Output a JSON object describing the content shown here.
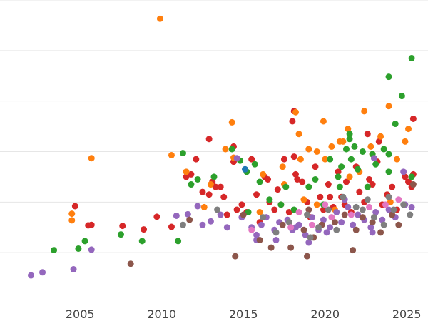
{
  "chart_data": {
    "type": "scatter",
    "title": "",
    "xlabel": "",
    "ylabel": "",
    "xlim": [
      2000.1,
      2026.3
    ],
    "ylim": [
      0,
      6
    ],
    "grid": "horizontal",
    "legend": "none",
    "x_ticks": [
      {
        "value": 2005,
        "label": "2005"
      },
      {
        "value": 2010,
        "label": "2010"
      },
      {
        "value": 2015,
        "label": "2015"
      },
      {
        "value": 2020,
        "label": "2020"
      },
      {
        "value": 2025,
        "label": "2025"
      }
    ],
    "y_gridlines": [
      1,
      2,
      3,
      4,
      5,
      6
    ],
    "series": [
      {
        "color": "#d62728",
        "points": [
          [
            2004.7,
            1.92
          ],
          [
            2005.5,
            1.54
          ],
          [
            2005.7,
            1.55
          ],
          [
            2007.6,
            1.53
          ],
          [
            2008.9,
            1.46
          ],
          [
            2009.7,
            1.71
          ],
          [
            2010.6,
            1.51
          ],
          [
            2011.5,
            2.5
          ],
          [
            2011.8,
            2.55
          ],
          [
            2012.1,
            2.85
          ],
          [
            2012.5,
            2.2
          ],
          [
            2012.9,
            2.15
          ],
          [
            2013.1,
            2.4
          ],
          [
            2013.3,
            2.3
          ],
          [
            2013.6,
            2.3
          ],
          [
            2013.8,
            2.1
          ],
          [
            2014.0,
            1.75
          ],
          [
            2014.4,
            2.8
          ],
          [
            2014.6,
            1.85
          ],
          [
            2014.9,
            1.95
          ],
          [
            2015.2,
            1.8
          ],
          [
            2015.5,
            2.85
          ],
          [
            2015.8,
            2.15
          ],
          [
            2016.0,
            1.6
          ],
          [
            2016.3,
            2.5
          ],
          [
            2016.6,
            2.0
          ],
          [
            2016.9,
            1.85
          ],
          [
            2017.1,
            2.25
          ],
          [
            2017.3,
            1.95
          ],
          [
            2017.5,
            2.85
          ],
          [
            2017.8,
            1.8
          ],
          [
            2018.1,
            2.9
          ],
          [
            2018.3,
            2.45
          ],
          [
            2018.6,
            2.4
          ],
          [
            2018.9,
            2.0
          ],
          [
            2019.1,
            1.7
          ],
          [
            2019.4,
            2.7
          ],
          [
            2019.7,
            2.1
          ],
          [
            2019.9,
            1.85
          ],
          [
            2020.2,
            2.35
          ],
          [
            2020.5,
            1.9
          ],
          [
            2020.8,
            2.6
          ],
          [
            2021.0,
            2.1
          ],
          [
            2021.3,
            2.4
          ],
          [
            2021.6,
            1.8
          ],
          [
            2021.9,
            2.7
          ],
          [
            2022.1,
            2.2
          ],
          [
            2022.4,
            2.0
          ],
          [
            2022.7,
            2.45
          ],
          [
            2022.9,
            2.35
          ],
          [
            2023.2,
            2.8
          ],
          [
            2023.5,
            1.95
          ],
          [
            2023.8,
            2.15
          ],
          [
            2024.1,
            2.3
          ],
          [
            2024.4,
            1.85
          ],
          [
            2024.9,
            2.5
          ],
          [
            2025.1,
            2.4
          ],
          [
            2025.3,
            2.3
          ],
          [
            2025.4,
            2.55
          ],
          [
            2012.9,
            3.25
          ],
          [
            2014.4,
            3.1
          ],
          [
            2018.0,
            3.6
          ],
          [
            2018.1,
            3.8
          ],
          [
            2022.6,
            3.35
          ],
          [
            2023.3,
            3.2
          ],
          [
            2025.4,
            3.65
          ],
          [
            2018.2,
            2.55
          ],
          [
            2020.3,
            2.1
          ],
          [
            2021.2,
            1.95
          ],
          [
            2016.5,
            2.45
          ]
        ]
      },
      {
        "color": "#ff7f0e",
        "points": [
          [
            2004.5,
            1.77
          ],
          [
            2004.5,
            1.64
          ],
          [
            2005.7,
            2.87
          ],
          [
            2009.9,
            5.63
          ],
          [
            2010.6,
            2.93
          ],
          [
            2011.5,
            2.6
          ],
          [
            2013.0,
            2.35
          ],
          [
            2013.9,
            3.05
          ],
          [
            2014.3,
            3.58
          ],
          [
            2014.4,
            2.88
          ],
          [
            2016.2,
            2.55
          ],
          [
            2017.4,
            2.7
          ],
          [
            2017.5,
            2.35
          ],
          [
            2018.2,
            3.78
          ],
          [
            2018.4,
            3.35
          ],
          [
            2018.7,
            2.05
          ],
          [
            2019.0,
            3.05
          ],
          [
            2019.5,
            3.0
          ],
          [
            2019.9,
            3.6
          ],
          [
            2020.0,
            2.85
          ],
          [
            2020.4,
            3.1
          ],
          [
            2020.9,
            3.2
          ],
          [
            2021.1,
            3.2
          ],
          [
            2021.4,
            3.45
          ],
          [
            2022.1,
            2.6
          ],
          [
            2022.4,
            3.8
          ],
          [
            2022.9,
            2.95
          ],
          [
            2023.4,
            3.3
          ],
          [
            2023.9,
            3.9
          ],
          [
            2024.4,
            2.85
          ],
          [
            2024.9,
            3.2
          ],
          [
            2025.1,
            3.45
          ],
          [
            2018.5,
            2.85
          ],
          [
            2021.5,
            2.5
          ],
          [
            2022.8,
            3.1
          ],
          [
            2016.0,
            1.8
          ],
          [
            2019.5,
            1.95
          ],
          [
            2024.0,
            2.0
          ],
          [
            2020.6,
            1.85
          ],
          [
            2012.6,
            1.9
          ]
        ]
      },
      {
        "color": "#2ca02c",
        "points": [
          [
            2003.4,
            1.05
          ],
          [
            2004.9,
            1.08
          ],
          [
            2005.3,
            1.23
          ],
          [
            2007.5,
            1.36
          ],
          [
            2008.8,
            1.23
          ],
          [
            2011.0,
            1.23
          ],
          [
            2011.3,
            2.97
          ],
          [
            2011.8,
            2.35
          ],
          [
            2012.2,
            2.45
          ],
          [
            2013.2,
            2.5
          ],
          [
            2014.3,
            3.05
          ],
          [
            2014.8,
            2.82
          ],
          [
            2015.2,
            2.6
          ],
          [
            2015.7,
            2.75
          ],
          [
            2016.0,
            2.4
          ],
          [
            2016.6,
            2.05
          ],
          [
            2017.6,
            2.3
          ],
          [
            2018.1,
            1.85
          ],
          [
            2019.0,
            2.3
          ],
          [
            2019.4,
            2.45
          ],
          [
            2019.9,
            1.95
          ],
          [
            2020.3,
            2.85
          ],
          [
            2020.8,
            2.5
          ],
          [
            2021.0,
            2.7
          ],
          [
            2021.3,
            3.05
          ],
          [
            2021.5,
            3.25
          ],
          [
            2021.6,
            2.85
          ],
          [
            2021.8,
            3.1
          ],
          [
            2022.0,
            2.65
          ],
          [
            2022.3,
            3.0
          ],
          [
            2022.6,
            2.3
          ],
          [
            2022.9,
            2.95
          ],
          [
            2023.1,
            2.75
          ],
          [
            2023.6,
            3.05
          ],
          [
            2023.9,
            2.95
          ],
          [
            2023.9,
            4.48
          ],
          [
            2024.3,
            3.55
          ],
          [
            2024.7,
            4.1
          ],
          [
            2025.3,
            4.85
          ],
          [
            2025.3,
            2.5
          ],
          [
            2023.9,
            2.6
          ],
          [
            2021.5,
            3.35
          ],
          [
            2020.9,
            2.3
          ],
          [
            2017.3,
            1.95
          ],
          [
            2015.3,
            1.8
          ]
        ]
      },
      {
        "color": "#1f77b4",
        "points": [
          [
            2015.1,
            2.65
          ]
        ]
      },
      {
        "color": "#9467bd",
        "points": [
          [
            2002.0,
            0.55
          ],
          [
            2002.7,
            0.61
          ],
          [
            2004.6,
            0.67
          ],
          [
            2005.7,
            1.06
          ],
          [
            2010.9,
            1.73
          ],
          [
            2011.6,
            1.76
          ],
          [
            2012.2,
            1.92
          ],
          [
            2012.5,
            1.55
          ],
          [
            2013.0,
            1.62
          ],
          [
            2013.6,
            1.75
          ],
          [
            2014.0,
            1.5
          ],
          [
            2014.6,
            2.87
          ],
          [
            2014.9,
            1.7
          ],
          [
            2015.5,
            1.5
          ],
          [
            2015.8,
            1.35
          ],
          [
            2016.1,
            1.55
          ],
          [
            2016.4,
            1.7
          ],
          [
            2016.9,
            1.45
          ],
          [
            2017.2,
            1.6
          ],
          [
            2017.7,
            1.65
          ],
          [
            2018.0,
            1.45
          ],
          [
            2018.4,
            1.55
          ],
          [
            2018.8,
            1.35
          ],
          [
            2019.2,
            1.7
          ],
          [
            2019.6,
            1.45
          ],
          [
            2019.9,
            1.65
          ],
          [
            2020.3,
            1.5
          ],
          [
            2020.7,
            1.8
          ],
          [
            2021.0,
            1.6
          ],
          [
            2021.4,
            1.9
          ],
          [
            2021.7,
            1.55
          ],
          [
            2022.0,
            1.75
          ],
          [
            2022.4,
            1.65
          ],
          [
            2022.8,
            1.5
          ],
          [
            2023.1,
            1.8
          ],
          [
            2023.5,
            1.65
          ],
          [
            2023.9,
            1.85
          ],
          [
            2024.3,
            1.7
          ],
          [
            2024.8,
            2.6
          ],
          [
            2024.9,
            1.95
          ],
          [
            2025.3,
            1.9
          ],
          [
            2023.0,
            2.87
          ],
          [
            2021.2,
            2.05
          ],
          [
            2019.0,
            1.2
          ],
          [
            2017.0,
            1.25
          ],
          [
            2015.8,
            1.25
          ],
          [
            2018.2,
            1.5
          ],
          [
            2020.1,
            1.4
          ],
          [
            2022.9,
            1.4
          ]
        ]
      },
      {
        "color": "#8c564b",
        "points": [
          [
            2008.1,
            0.78
          ],
          [
            2011.7,
            1.65
          ],
          [
            2014.5,
            0.93
          ],
          [
            2015.0,
            1.75
          ],
          [
            2016.0,
            1.25
          ],
          [
            2016.7,
            1.1
          ],
          [
            2017.4,
            1.55
          ],
          [
            2017.9,
            1.1
          ],
          [
            2018.7,
            1.45
          ],
          [
            2018.9,
            0.93
          ],
          [
            2019.3,
            1.3
          ],
          [
            2019.8,
            1.55
          ],
          [
            2020.6,
            1.6
          ],
          [
            2021.2,
            1.75
          ],
          [
            2021.9,
            1.45
          ],
          [
            2022.3,
            1.7
          ],
          [
            2022.9,
            1.6
          ],
          [
            2023.4,
            1.4
          ],
          [
            2024.1,
            1.75
          ],
          [
            2024.5,
            1.55
          ],
          [
            2025.4,
            2.35
          ],
          [
            2021.7,
            1.05
          ],
          [
            2019.0,
            1.85
          ]
        ]
      },
      {
        "color": "#7f7f7f",
        "points": [
          [
            2016.2,
            1.7
          ],
          [
            2017.0,
            1.4
          ],
          [
            2017.8,
            1.6
          ],
          [
            2018.9,
            1.75
          ],
          [
            2019.6,
            1.5
          ],
          [
            2020.2,
            1.85
          ],
          [
            2021.1,
            2.1
          ],
          [
            2021.9,
            1.9
          ],
          [
            2022.6,
            2.05
          ],
          [
            2023.0,
            1.7
          ],
          [
            2023.6,
            1.55
          ],
          [
            2024.2,
            1.85
          ],
          [
            2024.8,
            1.95
          ],
          [
            2025.2,
            1.75
          ],
          [
            2019.1,
            1.3
          ],
          [
            2020.7,
            1.45
          ],
          [
            2022.3,
            1.85
          ],
          [
            2023.9,
            2.1
          ],
          [
            2013.4,
            1.85
          ],
          [
            2011.3,
            1.55
          ]
        ]
      },
      {
        "color": "#e377c2",
        "points": [
          [
            2015.5,
            1.45
          ],
          [
            2017.9,
            1.5
          ],
          [
            2019.2,
            1.55
          ],
          [
            2020.4,
            1.7
          ],
          [
            2021.6,
            1.75
          ],
          [
            2022.7,
            1.9
          ],
          [
            2023.7,
            1.95
          ],
          [
            2024.5,
            2.05
          ],
          [
            2018.4,
            1.8
          ],
          [
            2020.0,
            1.95
          ]
        ]
      }
    ]
  }
}
